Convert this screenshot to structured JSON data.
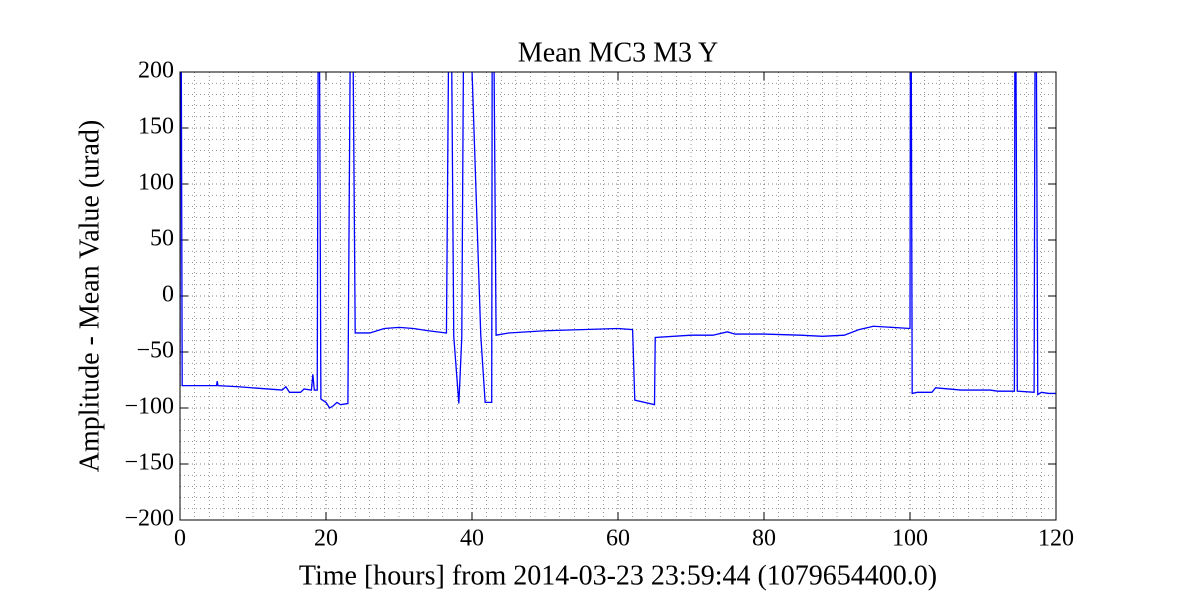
{
  "chart_data": {
    "type": "line",
    "title": "Mean MC3 M3 Y",
    "xlabel": "Time [hours] from 2014-03-23 23:59:44 (1079654400.0)",
    "ylabel": "Amplitude - Mean Value (urad)",
    "x": [
      0,
      0.1,
      0.3,
      2,
      5,
      5.1,
      5.2,
      8,
      10,
      14,
      14.5,
      15,
      16.5,
      17,
      18,
      18.2,
      18.4,
      18.8,
      19,
      19.3,
      20,
      20.5,
      21,
      21.5,
      22,
      23,
      23.5,
      24,
      26,
      28,
      30,
      32,
      34,
      36.5,
      37,
      37.5,
      38.2,
      38.6,
      39,
      41.2,
      41.8,
      42.7,
      42.8,
      43.3,
      45,
      50,
      55,
      60,
      62,
      62.3,
      65,
      65.1,
      70,
      73,
      75,
      76,
      80,
      85,
      88,
      91,
      93,
      95,
      100,
      100.1,
      100.3,
      101,
      103,
      103.5,
      107,
      111,
      112,
      114.3,
      114.4,
      114.7,
      117,
      117.2,
      117.5,
      118,
      119,
      120
    ],
    "series": [
      {
        "name": "Mean MC3 M3 Y",
        "color": "#0000ff",
        "values": [
          -80,
          400,
          -80,
          -80,
          -80,
          -76,
          -80,
          -81,
          -82,
          -84,
          -81,
          -86,
          -86,
          -83,
          -84,
          -70,
          -84,
          -84,
          400,
          -92,
          -95,
          -100,
          -98,
          -95,
          -97,
          -96,
          400,
          -33,
          -33,
          -29,
          -28,
          -29,
          -31,
          -33,
          400,
          -36,
          -96,
          -37,
          400,
          -35,
          -95,
          -95,
          400,
          -35,
          -33,
          -31,
          -30,
          -29,
          -30,
          -93,
          -97,
          -37,
          -35,
          -35,
          -32,
          -34,
          -34,
          -35,
          -36,
          -35,
          -30,
          -27,
          -29,
          400,
          -87,
          -86,
          -86,
          -82,
          -84,
          -84,
          -85,
          -85,
          400,
          -85,
          -86,
          400,
          -88,
          -86,
          -87,
          -87
        ]
      }
    ],
    "xlim": [
      0,
      120
    ],
    "xticks": [
      0,
      20,
      40,
      60,
      80,
      100,
      120
    ],
    "ylim": [
      -200,
      200
    ],
    "yticks": [
      {
        "value": -200,
        "label": "−200"
      },
      {
        "value": -150,
        "label": "−150"
      },
      {
        "value": -100,
        "label": "−100"
      },
      {
        "value": -50,
        "label": "−50"
      },
      0,
      50,
      100,
      150,
      200
    ],
    "grid": true
  }
}
